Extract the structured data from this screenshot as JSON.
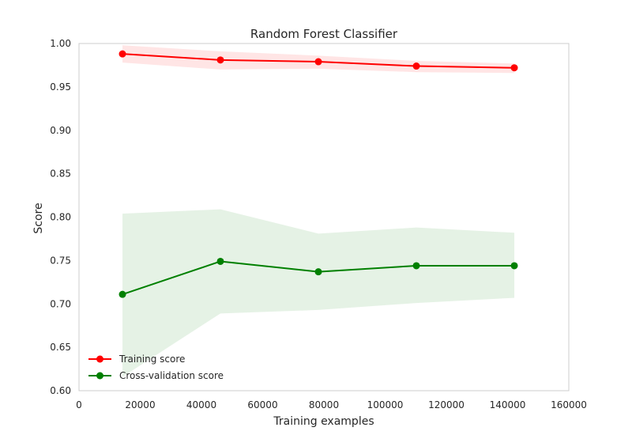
{
  "chart_data": {
    "type": "line",
    "title": "Random Forest Classifier",
    "xlabel": "Training examples",
    "ylabel": "Score",
    "xlim": [
      0,
      160000
    ],
    "ylim": [
      0.6,
      1.0
    ],
    "x_ticks": [
      0,
      20000,
      40000,
      60000,
      80000,
      100000,
      120000,
      140000,
      160000
    ],
    "y_ticks": [
      0.6,
      0.65,
      0.7,
      0.75,
      0.8,
      0.85,
      0.9,
      0.95,
      1.0
    ],
    "x_tick_labels": [
      "0",
      "20000",
      "40000",
      "60000",
      "80000",
      "100000",
      "120000",
      "140000",
      "160000"
    ],
    "y_tick_labels": [
      "0.60",
      "0.65",
      "0.70",
      "0.75",
      "0.80",
      "0.85",
      "0.90",
      "0.95",
      "1.00"
    ],
    "grid": false,
    "legend_position": "bottom-left",
    "x": [
      14200,
      46200,
      78200,
      110200,
      142200
    ],
    "series": [
      {
        "name": "Training score",
        "color": "#ff0000",
        "band_color": "#ff0000",
        "values": [
          0.988,
          0.981,
          0.979,
          0.974,
          0.972
        ],
        "band_upper": [
          0.998,
          0.991,
          0.986,
          0.98,
          0.977
        ],
        "band_lower": [
          0.978,
          0.97,
          0.971,
          0.967,
          0.966
        ]
      },
      {
        "name": "Cross-validation score",
        "color": "#008000",
        "band_color": "#008000",
        "values": [
          0.711,
          0.749,
          0.737,
          0.744,
          0.744
        ],
        "band_upper": [
          0.804,
          0.809,
          0.781,
          0.788,
          0.782
        ],
        "band_lower": [
          0.616,
          0.689,
          0.693,
          0.701,
          0.707
        ]
      }
    ]
  }
}
